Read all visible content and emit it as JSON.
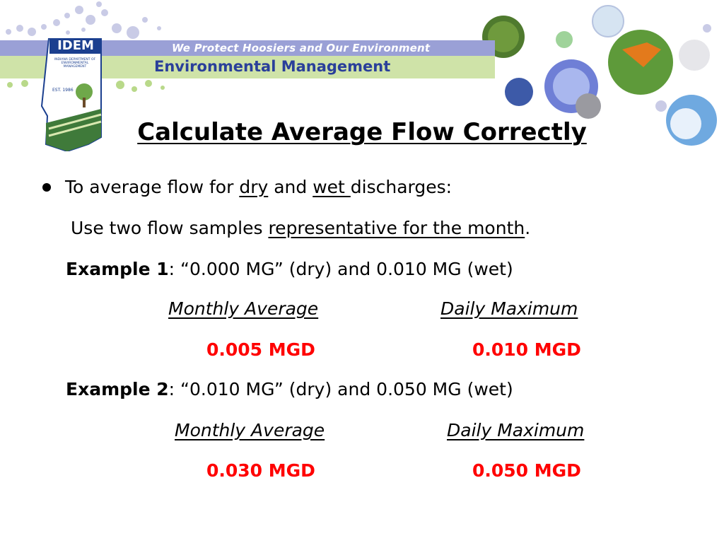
{
  "header": {
    "logo_text": "IDEM",
    "logo_subtext": "INDIANA DEPARTMENT OF ENVIRONMENTAL MANAGEMENT",
    "logo_est": "EST. 1986",
    "tagline": "We Protect Hoosiers and Our Environment",
    "department": "Environmental Management"
  },
  "slide": {
    "title": "Calculate Average Flow Correctly",
    "bullet": {
      "prefix": "To average flow for ",
      "dry": "dry",
      "and": " and ",
      "wet": "wet ",
      "suffix": "discharges:"
    },
    "instruction": {
      "prefix": "Use two flow samples ",
      "underlined": "representative for the month",
      "suffix": "."
    },
    "examples": [
      {
        "label": "Example 1",
        "text": ": “0.000 MG” (dry) and 0.010 MG (wet)",
        "monthly_label": "Monthly Average",
        "daily_label": "Daily Maximum",
        "monthly_value": "0.005 MGD",
        "daily_value": "0.010 MGD"
      },
      {
        "label": "Example 2",
        "text": ": “0.010 MG” (dry) and 0.050 MG (wet)",
        "monthly_label": "Monthly Average",
        "daily_label": "Daily Maximum",
        "monthly_value": "0.030 MGD",
        "daily_value": "0.050 MGD"
      }
    ]
  },
  "colors": {
    "highlight": "#ff0000",
    "banner_blue": "#9aa0d6",
    "banner_green": "#cfe3a8",
    "brand_blue": "#1b3f8f"
  }
}
